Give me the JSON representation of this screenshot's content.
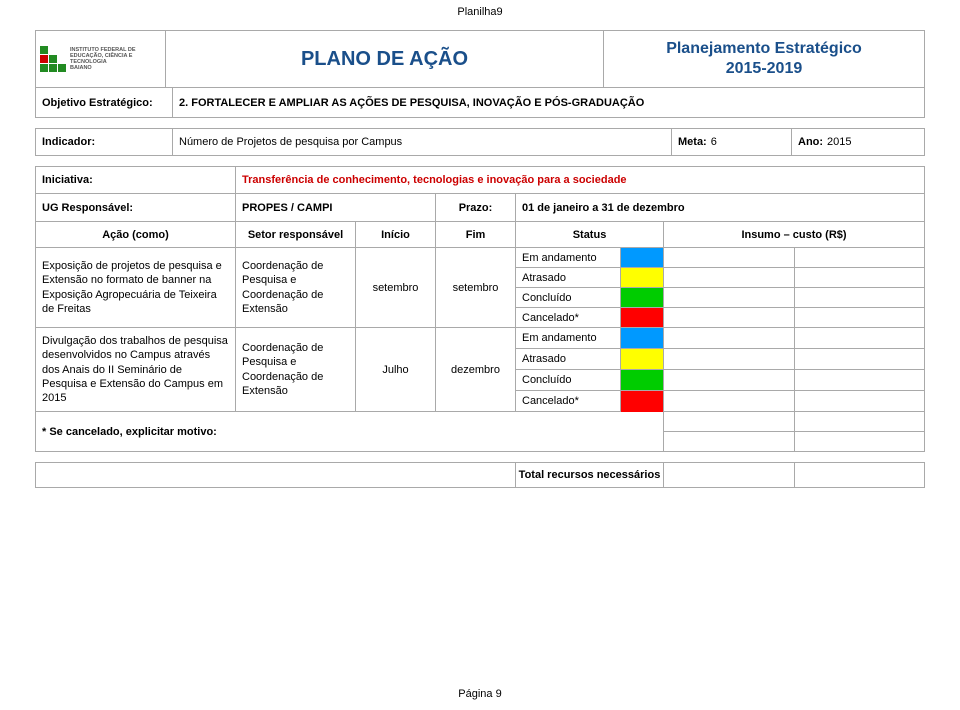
{
  "page_header": "Planilha9",
  "title_plano": "PLANO DE AÇÃO",
  "title_pe": "Planejamento Estratégico\n2015-2019",
  "objective_label": "Objetivo Estratégico:",
  "objective_value": "2. FORTALECER E AMPLIAR AS AÇÕES DE PESQUISA, INOVAÇÃO E PÓS-GRADUAÇÃO",
  "indicator_label": "Indicador:",
  "indicator_value": "Número de Projetos de pesquisa por Campus",
  "meta_label": "Meta:",
  "meta_value": "6",
  "ano_label": "Ano:",
  "ano_value": "2015",
  "iniciativa_label": "Iniciativa:",
  "iniciativa_value": "Transferência de conhecimento, tecnologias e inovação para a sociedade",
  "ug_label": "UG Responsável:",
  "ug_value": "PROPES / CAMPI",
  "prazo_label": "Prazo:",
  "prazo_value": "01 de janeiro a 31 de dezembro",
  "headers": {
    "acao": "Ação (como)",
    "setor": "Setor responsável",
    "inicio": "Início",
    "fim": "Fim",
    "status": "Status",
    "insumo": "Insumo – custo (R$)"
  },
  "status_labels": {
    "em_andamento": "Em andamento",
    "atrasado": "Atrasado",
    "concluido": "Concluído",
    "cancelado": "Cancelado*"
  },
  "status_colors": {
    "em_andamento": "#0099ff",
    "atrasado": "#ffff00",
    "concluido": "#00cc00",
    "cancelado": "#ff0000"
  },
  "actions": [
    {
      "acao": "Exposição de projetos de pesquisa e Extensão no formato de banner na Exposição Agropecuária de Teixeira de Freitas",
      "setor": "Coordenação de Pesquisa e Coordenação de Extensão",
      "inicio": "setembro",
      "fim": "setembro"
    },
    {
      "acao": "Divulgação dos trabalhos de pesquisa desenvolvidos no Campus através dos Anais do II Seminário de Pesquisa e Extensão do Campus em 2015",
      "setor": "Coordenação de Pesquisa e Coordenação de Extensão",
      "inicio": "Julho",
      "fim": "dezembro"
    }
  ],
  "cancel_note": "* Se cancelado, explicitar motivo:",
  "total_label": "Total recursos necessários",
  "page_footer": "Página 9",
  "logo_text": "INSTITUTO FEDERAL DE\nEDUCAÇÃO, CIÊNCIA E TECNOLOGIA\nBAIANO",
  "brand_color": "#1a4f8a",
  "accent_red": "#cc0000"
}
